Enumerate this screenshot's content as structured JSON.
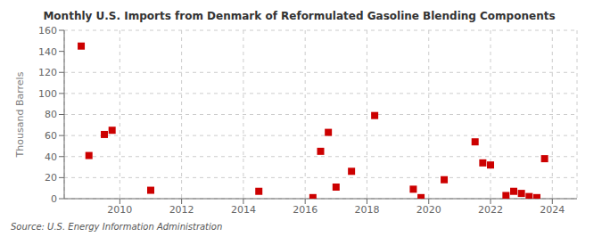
{
  "chart_data": {
    "type": "scatter",
    "title": "Monthly U.S. Imports from Denmark of Reformulated Gasoline Blending Components",
    "y_label": "Thousand Barrels",
    "annotations": [
      "Source: U.S. Energy Information Administration"
    ],
    "x": [
      2008.75,
      2009.0,
      2009.5,
      2009.75,
      2011.0,
      2014.5,
      2016.25,
      2016.5,
      2016.75,
      2017.0,
      2017.5,
      2018.25,
      2019.5,
      2019.75,
      2020.5,
      2021.5,
      2021.75,
      2022.0,
      2022.5,
      2022.75,
      2023.0,
      2023.25,
      2023.5,
      2023.75
    ],
    "values": [
      145,
      41,
      61,
      65,
      8,
      7,
      1,
      45,
      63,
      11,
      26,
      79,
      9,
      1,
      18,
      54,
      34,
      32,
      3,
      7,
      5,
      2,
      1,
      38
    ],
    "color": "#cc0000",
    "marker": "square",
    "xlim": [
      2008.2,
      2024.8
    ],
    "ylim": [
      0,
      160
    ],
    "xticks": [
      2010,
      2012,
      2014,
      2016,
      2018,
      2020,
      2022,
      2024
    ],
    "yticks": [
      0,
      20,
      40,
      60,
      80,
      100,
      120,
      140,
      160
    ],
    "grid": true
  }
}
